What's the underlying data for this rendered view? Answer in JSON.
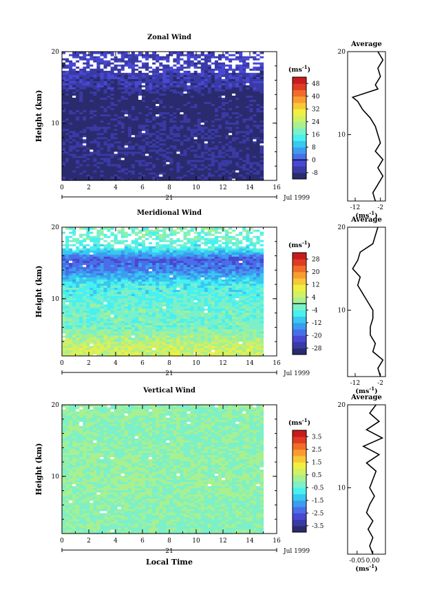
{
  "chart_data": [
    {
      "type": "heatmap",
      "title": "Zonal Wind",
      "ylabel": "Height (km)",
      "yticks": [
        "20",
        "10"
      ],
      "ylim": [
        2,
        20
      ],
      "xticks": [
        "0",
        "2",
        "4",
        "6",
        "8",
        "10",
        "12",
        "14",
        "16"
      ],
      "xlim": [
        0,
        16
      ],
      "data_x_end": 15,
      "date_day": "21",
      "date_label": "Jul 1999",
      "colorbar": {
        "unit": "(ms",
        "unit_sup": "-1",
        "unit_close": ")",
        "ticks": [
          "48",
          "40",
          "32",
          "24",
          "16",
          "8",
          "0",
          "-8"
        ],
        "min": -12,
        "max": 52,
        "zero_line": 0
      },
      "profile": {
        "title": "Average",
        "xticks": [
          "-12",
          "-2"
        ],
        "xlim": [
          -15,
          0
        ],
        "unit": "(ms",
        "unit_sup": "-1",
        "unit_close": ")",
        "y": [
          2,
          3,
          4,
          5,
          6,
          7,
          8,
          9,
          10,
          11,
          12,
          13,
          14,
          14.5,
          15,
          15.5,
          16,
          17,
          18,
          19,
          20
        ],
        "x": [
          -4,
          -5,
          -3,
          -1,
          -3,
          -1,
          -4,
          -2,
          -3,
          -4,
          -6,
          -9,
          -11,
          -13,
          -8,
          -3,
          -4,
          -2,
          -3,
          -1,
          -3
        ]
      },
      "field_levels": [
        {
          "height": 3,
          "value": -10
        },
        {
          "height": 6,
          "value": -8.5
        },
        {
          "height": 9,
          "value": -9
        },
        {
          "height": 12,
          "value": -10
        },
        {
          "height": 14,
          "value": -11
        },
        {
          "height": 15,
          "value": -6
        },
        {
          "height": 17,
          "value": -5
        },
        {
          "height": 19,
          "value": -4
        }
      ]
    },
    {
      "type": "heatmap",
      "title": "Meridional Wind",
      "ylabel": "Height (km)",
      "yticks": [
        "20",
        "10"
      ],
      "ylim": [
        2,
        20
      ],
      "xticks": [
        "0",
        "2",
        "4",
        "6",
        "8",
        "10",
        "12",
        "14",
        "16"
      ],
      "xlim": [
        0,
        16
      ],
      "data_x_end": 15,
      "date_day": "21",
      "date_label": "Jul 1999",
      "colorbar": {
        "unit": "(ms",
        "unit_sup": "-1",
        "unit_close": ")",
        "ticks": [
          "28",
          "20",
          "12",
          "4",
          "-4",
          "-12",
          "-20",
          "-28"
        ],
        "min": -32,
        "max": 32,
        "zero_line": 0
      },
      "profile": {
        "title": "Average",
        "xticks": [
          "-12",
          "-2"
        ],
        "xlim": [
          -15,
          0
        ],
        "unit": "(ms",
        "unit_sup": "-1",
        "unit_close": ")",
        "y": [
          2,
          3,
          4,
          5,
          6,
          7,
          8,
          9,
          10,
          11,
          12,
          13,
          14,
          15,
          16,
          17,
          18,
          19,
          20
        ],
        "x": [
          -2,
          -3,
          -1,
          -5,
          -4,
          -6,
          -6,
          -5,
          -5,
          -7,
          -9,
          -11,
          -10,
          -13,
          -11,
          -10,
          -5,
          -4,
          -3
        ]
      },
      "field_levels": [
        {
          "height": 3,
          "value": 6
        },
        {
          "height": 6,
          "value": -2
        },
        {
          "height": 9,
          "value": -3
        },
        {
          "height": 12,
          "value": -6
        },
        {
          "height": 14,
          "value": -16
        },
        {
          "height": 15.5,
          "value": -20
        },
        {
          "height": 17,
          "value": -6
        },
        {
          "height": 19,
          "value": -2
        }
      ]
    },
    {
      "type": "heatmap",
      "title": "Vertical Wind",
      "ylabel": "Height (km)",
      "yticks": [
        "20",
        "10"
      ],
      "ylim": [
        2,
        20
      ],
      "xticks": [
        "0",
        "2",
        "4",
        "6",
        "8",
        "10",
        "12",
        "14",
        "16"
      ],
      "xlim": [
        0,
        16
      ],
      "data_x_end": 15,
      "date_day": "21",
      "date_label": "Jul 1999",
      "xlabel": "Local Time",
      "colorbar": {
        "unit": "(ms",
        "unit_sup": "-1",
        "unit_close": ")",
        "ticks": [
          "3.5",
          "2.5",
          "1.5",
          "0.5",
          "-0.5",
          "-1.5",
          "-2.5",
          "-3.5"
        ],
        "min": -4,
        "max": 4,
        "zero_line": null
      },
      "profile": {
        "title": "Average",
        "xticks": [
          "-0.05",
          "0.00"
        ],
        "xlim": [
          -0.08,
          0.04
        ],
        "unit": "(ms",
        "unit_sup": "-1",
        "unit_close": ")",
        "y": [
          2,
          3,
          4,
          5,
          6,
          7,
          8,
          9,
          10,
          11,
          12,
          13,
          14,
          15,
          16,
          17,
          18,
          19,
          20
        ],
        "x": [
          0.0,
          -0.01,
          0.0,
          -0.015,
          0.0,
          -0.02,
          -0.01,
          0.005,
          -0.01,
          0.0,
          0.01,
          -0.02,
          0.02,
          -0.03,
          0.03,
          -0.02,
          0.02,
          -0.01,
          0.01
        ]
      },
      "field_levels": [
        {
          "height": 4,
          "value": -0.1
        },
        {
          "height": 10,
          "value": 0.05
        },
        {
          "height": 16,
          "value": -0.1
        },
        {
          "height": 19,
          "value": 0.0
        }
      ]
    }
  ]
}
